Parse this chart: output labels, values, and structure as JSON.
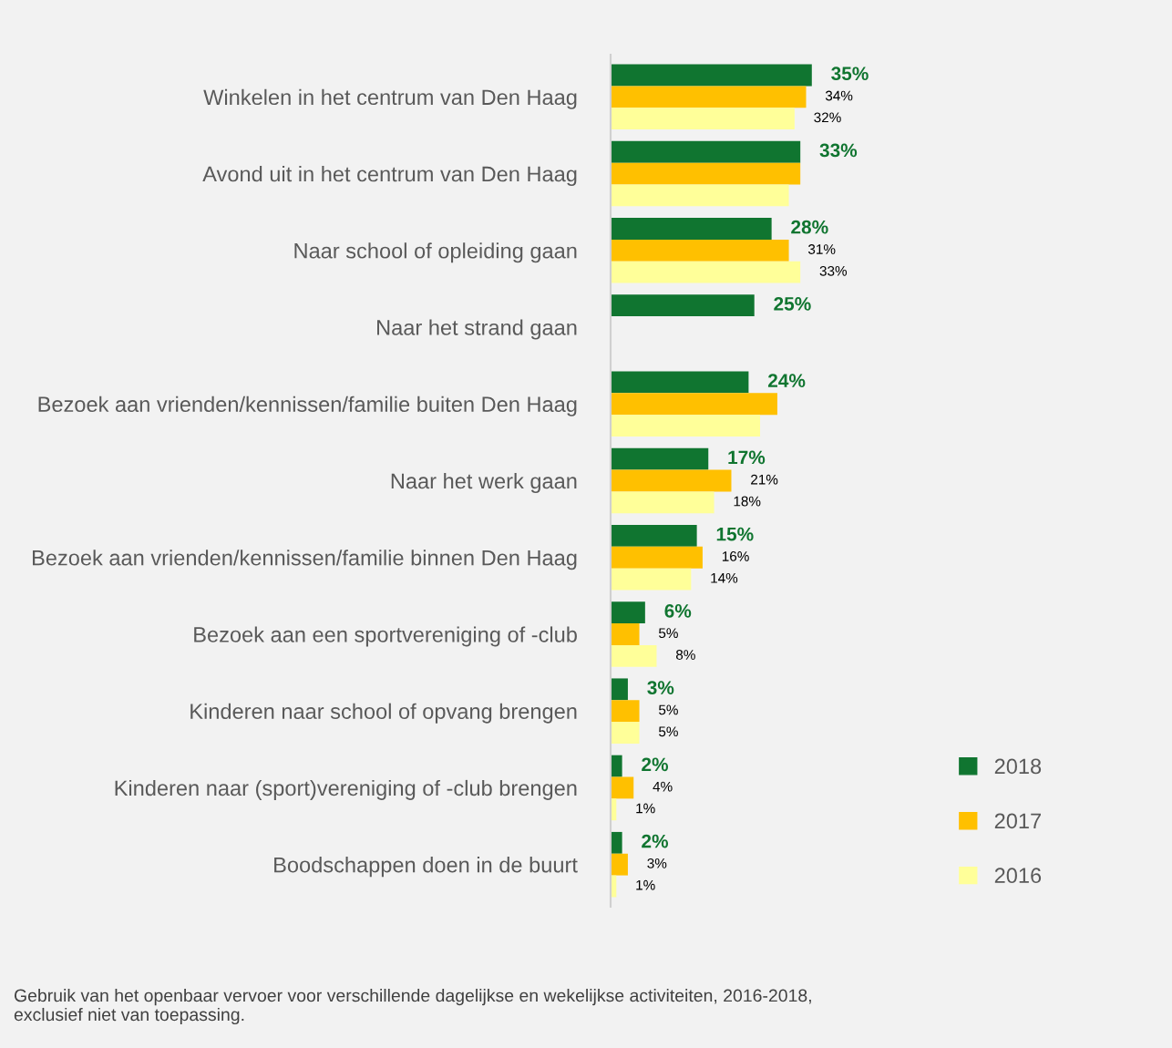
{
  "chart_data": {
    "type": "bar",
    "orientation": "horizontal",
    "categories": [
      "Winkelen in het centrum van Den Haag",
      "Avond uit in het centrum van Den Haag",
      "Naar school of opleiding gaan",
      "Naar het strand gaan",
      "Bezoek aan vrienden/kennissen/familie buiten Den Haag",
      "Naar het werk gaan",
      "Bezoek aan vrienden/kennissen/familie binnen Den Haag",
      "Bezoek aan een sportvereniging of -club",
      "Kinderen naar school of opvang brengen",
      "Kinderen naar (sport)vereniging of -club brengen",
      "Boodschappen doen in de buurt"
    ],
    "series": [
      {
        "name": "2018",
        "color": "#107530",
        "values": [
          35,
          33,
          28,
          25,
          24,
          17,
          15,
          6,
          3,
          2,
          2
        ],
        "value_labels": [
          "35%",
          "33%",
          "28%",
          "25%",
          "24%",
          "17%",
          "15%",
          "6%",
          "3%",
          "2%",
          "2%"
        ]
      },
      {
        "name": "2017",
        "color": "#ffc000",
        "values": [
          34,
          33,
          31,
          null,
          29,
          21,
          16,
          5,
          5,
          4,
          3
        ],
        "value_labels": [
          "34%",
          null,
          "31%",
          null,
          null,
          "21%",
          "16%",
          "5%",
          "5%",
          "4%",
          "3%"
        ]
      },
      {
        "name": "2016",
        "color": "#ffff99",
        "values": [
          32,
          31,
          33,
          null,
          26,
          18,
          14,
          8,
          5,
          1,
          1
        ],
        "value_labels": [
          "32%",
          null,
          "33%",
          null,
          null,
          "18%",
          "14%",
          "8%",
          "5%",
          "1%",
          "1%"
        ]
      }
    ],
    "tick_labels": "y",
    "grid": false,
    "legend": "bottom right",
    "annotations": [
      "Gebruik van het openbaar vervoer voor verschillende dagelijkse en wekelijkse activiteiten, 2016-2018,\nexclusief niet van toepassing."
    ]
  }
}
